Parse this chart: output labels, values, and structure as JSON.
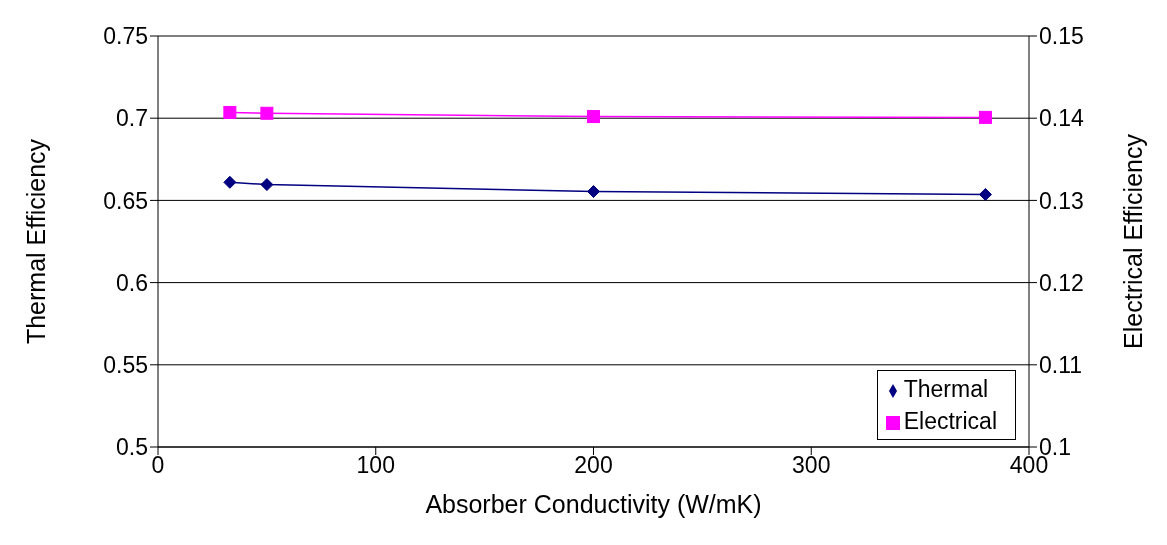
{
  "chart_data": {
    "type": "line",
    "xlabel": "Absorber Conductivity (W/mK)",
    "ylabel": "Thermal Efficiency",
    "y2label": "Electrical Efficiency",
    "x": [
      33,
      50,
      200,
      380
    ],
    "series": [
      {
        "name": "Thermal",
        "color": "#000080",
        "marker": "diamond",
        "values": [
          0.661,
          0.6596,
          0.6554,
          0.6536
        ]
      },
      {
        "name": "Electrical",
        "color": "#ff00ff",
        "marker": "square",
        "axis": "y2",
        "values": [
          0.1407,
          0.1406,
          0.1402,
          0.1401
        ]
      }
    ],
    "xlim": [
      0,
      400
    ],
    "xticks": [
      0,
      100,
      200,
      300,
      400
    ],
    "ylim": [
      0.5,
      0.75
    ],
    "yticks": [
      0.5,
      0.55,
      0.6,
      0.65,
      0.7,
      0.75
    ],
    "y2lim": [
      0.1,
      0.15
    ],
    "y2ticks": [
      0.1,
      0.11,
      0.12,
      0.13,
      0.14,
      0.15
    ],
    "grid": "y",
    "legend": "bottom right"
  }
}
